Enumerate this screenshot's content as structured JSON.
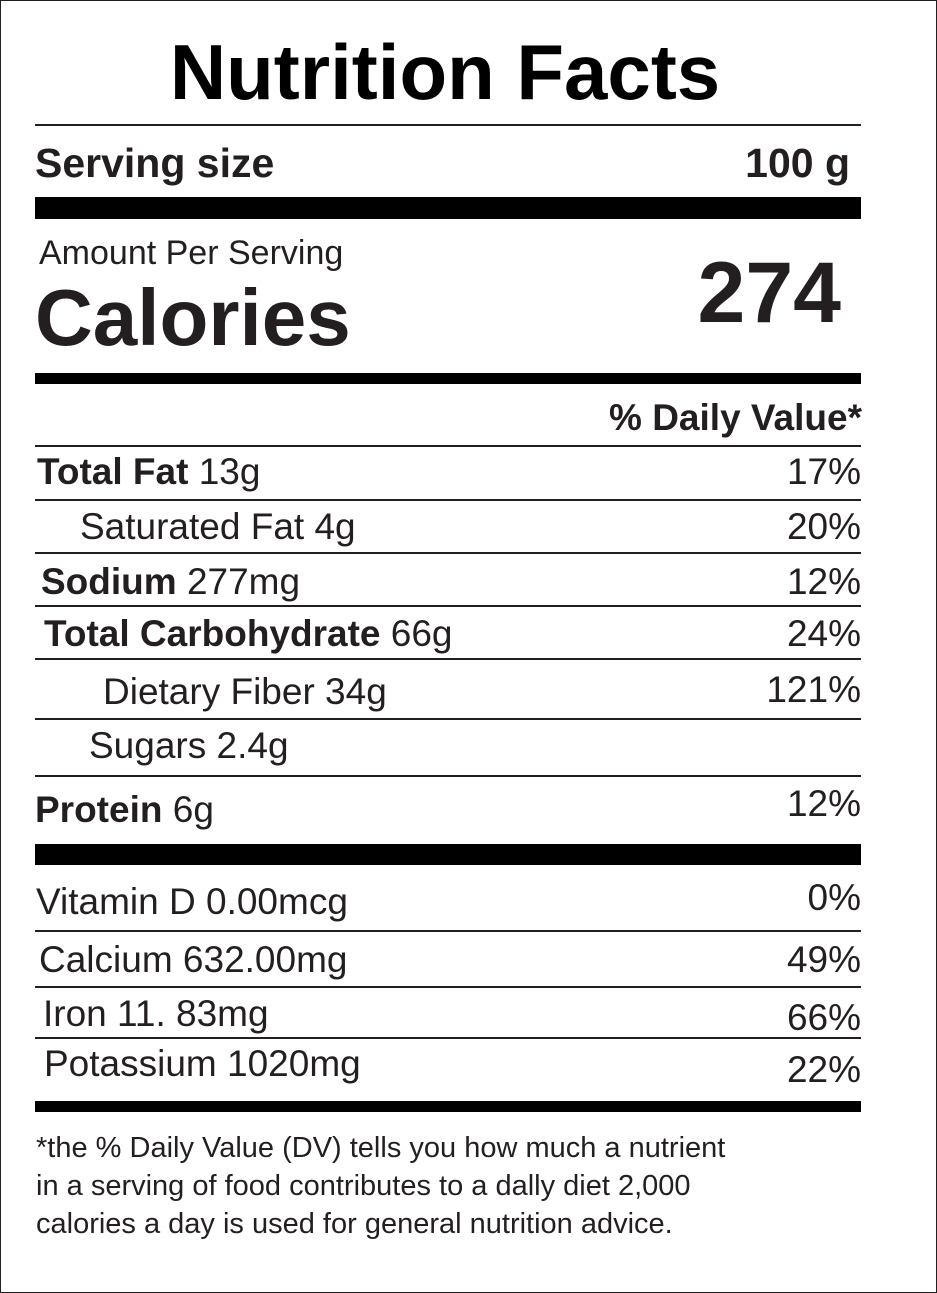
{
  "title": "Nutrition Facts",
  "serving": {
    "label": "Serving size",
    "value": "100 g"
  },
  "calories": {
    "amount_label": "Amount Per Serving",
    "label": "Calories",
    "value": "274"
  },
  "daily_value_header": "% Daily Value*",
  "nutrients": [
    {
      "name": "Total Fat",
      "amount": " 13g",
      "dv": "17%"
    },
    {
      "name": "Saturated Fat 4g",
      "dv": "20%"
    },
    {
      "name": "Sodium",
      "amount": " 277mg",
      "dv": "12%"
    },
    {
      "name": "Total Carbohydrate",
      "amount": " 66g",
      "dv": "24%"
    },
    {
      "name": "Dietary Fiber 34g",
      "dv": "121%"
    },
    {
      "name": "Sugars 2.4g",
      "dv": ""
    },
    {
      "name": "Protein",
      "amount": " 6g",
      "dv": "12%"
    }
  ],
  "vitamins": [
    {
      "name": "Vitamin D  0.00mcg",
      "dv": "0%"
    },
    {
      "name": "Calcium 632.00mg",
      "dv": "49%"
    },
    {
      "name": "Iron  11. 83mg",
      "dv": "66%"
    },
    {
      "name": "Potassium 1020mg",
      "dv": "22%"
    }
  ],
  "footnote": "*the % Daily Value (DV)  tells you how much a nutrient\nin a serving of food contributes to a dally diet 2,000\ncalories a day is used for general nutrition advice."
}
